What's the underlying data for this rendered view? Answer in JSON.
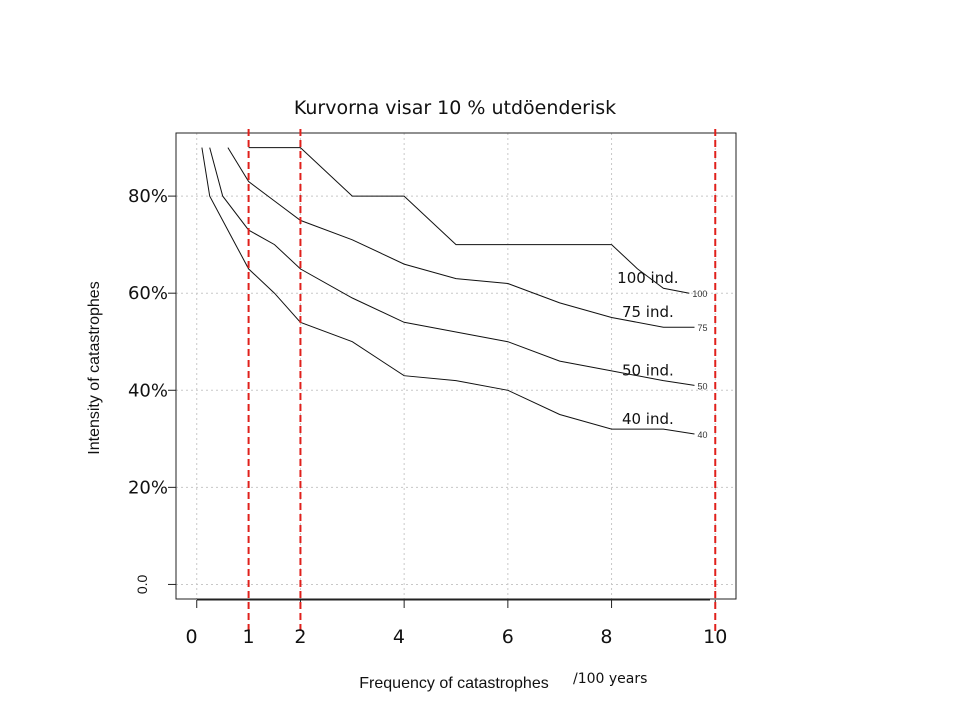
{
  "chart_data": {
    "type": "line",
    "title": "Kurvorna visar 10 % utdöenderisk",
    "xlabel": "Frequency of catastrophes",
    "xlabel_unit": "/100 years",
    "ylabel": "Intensity of catastrophes",
    "xlim": [
      -0.4,
      10.4
    ],
    "ylim": [
      -0.03,
      0.93
    ],
    "x_ticks": [
      0,
      2,
      4,
      6,
      8,
      10
    ],
    "x_tick_labels": [
      "0",
      "1",
      "2",
      "4",
      "6",
      "8",
      "10"
    ],
    "x_tick_label_positions": [
      -0.1,
      1.0,
      2.0,
      3.9,
      6.0,
      7.9,
      10.0
    ],
    "y_tick_labels": [
      {
        "value": 0.0,
        "label": "0.0"
      },
      {
        "value": 0.2,
        "label": "20%"
      },
      {
        "value": 0.4,
        "label": "40%"
      },
      {
        "value": 0.6,
        "label": "60%"
      },
      {
        "value": 0.8,
        "label": "80%"
      }
    ],
    "grid": true,
    "series": [
      {
        "name": "100 ind.",
        "contour_label": "100",
        "x": [
          1.0,
          1.5,
          2.0,
          3.0,
          3.5,
          4.0,
          5.0,
          6.0,
          7.0,
          8.0,
          8.5,
          9.0,
          9.5
        ],
        "y": [
          0.9,
          0.9,
          0.9,
          0.8,
          0.8,
          0.8,
          0.7,
          0.7,
          0.7,
          0.7,
          0.65,
          0.61,
          0.6
        ]
      },
      {
        "name": "75 ind.",
        "contour_label": "75",
        "x": [
          0.6,
          1.0,
          1.5,
          2.0,
          3.0,
          4.0,
          5.0,
          6.0,
          7.0,
          8.0,
          9.0,
          9.6
        ],
        "y": [
          0.9,
          0.83,
          0.79,
          0.75,
          0.71,
          0.66,
          0.63,
          0.62,
          0.58,
          0.55,
          0.53,
          0.53
        ]
      },
      {
        "name": "50 ind.",
        "contour_label": "50",
        "x": [
          0.25,
          0.5,
          1.0,
          1.5,
          2.0,
          3.0,
          4.0,
          5.0,
          6.0,
          7.0,
          8.0,
          9.0,
          9.6
        ],
        "y": [
          0.9,
          0.8,
          0.73,
          0.7,
          0.65,
          0.59,
          0.54,
          0.52,
          0.5,
          0.46,
          0.44,
          0.42,
          0.41
        ]
      },
      {
        "name": "40 ind.",
        "contour_label": "40",
        "x": [
          0.1,
          0.25,
          0.75,
          1.0,
          1.5,
          2.0,
          3.0,
          4.0,
          5.0,
          6.0,
          7.0,
          8.0,
          9.0,
          9.6
        ],
        "y": [
          0.9,
          0.8,
          0.7,
          0.65,
          0.6,
          0.54,
          0.5,
          0.43,
          0.42,
          0.4,
          0.35,
          0.32,
          0.32,
          0.31
        ]
      }
    ],
    "reference_lines_x": [
      1,
      2,
      10
    ],
    "reference_line_color": "#e0201b"
  }
}
